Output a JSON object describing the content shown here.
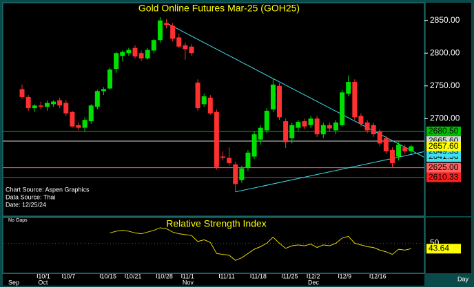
{
  "chart_data": {
    "type": "candlestick",
    "title": "Gold Online Futures Mar-25 (GOH25)",
    "notes": [
      "Chart Source: Aspen Graphics",
      "Data Source: Thai",
      "Date: 12/25/24"
    ],
    "gaps_label": "No Gaps",
    "x_axis_label": "Day",
    "categories": [
      null,
      null,
      null,
      "10/1",
      null,
      null,
      null,
      "10/7",
      null,
      null,
      null,
      null,
      null,
      "10/15",
      null,
      null,
      null,
      "10/21",
      null,
      null,
      null,
      null,
      "10/28",
      null,
      null,
      null,
      "11/1",
      null,
      null,
      null,
      null,
      null,
      "11/11",
      null,
      null,
      null,
      null,
      "11/18",
      null,
      null,
      null,
      null,
      "11/25",
      null,
      null,
      null,
      "12/2",
      null,
      null,
      null,
      null,
      "12/9",
      null,
      null,
      null,
      null,
      "12/16",
      null,
      null,
      null,
      null,
      null,
      null
    ],
    "months": [
      "Sep",
      null,
      null,
      "Oct",
      null,
      null,
      null,
      null,
      null,
      null,
      null,
      null,
      null,
      null,
      null,
      null,
      null,
      null,
      null,
      null,
      null,
      null,
      null,
      null,
      null,
      null,
      "Nov",
      null,
      null,
      null,
      null,
      null,
      null,
      null,
      null,
      null,
      null,
      null,
      null,
      null,
      null,
      null,
      null,
      null,
      null,
      null,
      "Dec",
      null,
      null,
      null,
      null,
      null,
      null,
      null,
      null,
      null,
      null,
      null,
      null,
      null,
      null,
      null,
      null
    ],
    "open": [
      2745,
      2733,
      2716,
      2720,
      2718,
      2722,
      2728,
      2724,
      2710,
      2690,
      2686,
      2696,
      2718,
      2742,
      2746,
      2776,
      2796,
      2800,
      2808,
      2800,
      2792,
      2804,
      2820,
      2846,
      2842,
      2824,
      2812,
      2810,
      2755,
      2722,
      2732,
      2710,
      2642,
      2640,
      2630,
      2606,
      2625,
      2642,
      2668,
      2682,
      2714,
      2750,
      2696,
      2670,
      2686,
      2696,
      2690,
      2700,
      2676,
      2690,
      2682,
      2690,
      2738,
      2756,
      2704,
      2694,
      2690,
      2680,
      2670,
      2652,
      2642,
      2656,
      2650
    ],
    "high": [
      2752,
      2736,
      2722,
      2726,
      2728,
      2728,
      2732,
      2728,
      2712,
      2694,
      2702,
      2722,
      2744,
      2748,
      2778,
      2802,
      2804,
      2808,
      2812,
      2804,
      2808,
      2822,
      2855,
      2852,
      2846,
      2830,
      2816,
      2814,
      2760,
      2738,
      2736,
      2714,
      2650,
      2656,
      2634,
      2628,
      2652,
      2680,
      2690,
      2716,
      2762,
      2754,
      2700,
      2694,
      2698,
      2700,
      2704,
      2704,
      2694,
      2694,
      2698,
      2744,
      2766,
      2760,
      2708,
      2698,
      2694,
      2684,
      2674,
      2656,
      2664,
      2660,
      2660
    ],
    "low": [
      2730,
      2712,
      2710,
      2714,
      2712,
      2718,
      2716,
      2704,
      2686,
      2682,
      2680,
      2692,
      2714,
      2736,
      2744,
      2770,
      2788,
      2796,
      2792,
      2788,
      2790,
      2800,
      2816,
      2838,
      2818,
      2808,
      2790,
      2796,
      2712,
      2718,
      2706,
      2622,
      2636,
      2628,
      2588,
      2602,
      2620,
      2638,
      2660,
      2678,
      2710,
      2698,
      2655,
      2662,
      2680,
      2684,
      2686,
      2672,
      2670,
      2680,
      2676,
      2688,
      2734,
      2698,
      2688,
      2678,
      2672,
      2658,
      2646,
      2625,
      2636,
      2646,
      2646
    ],
    "close": [
      2733,
      2716,
      2720,
      2718,
      2724,
      2726,
      2720,
      2708,
      2688,
      2686,
      2698,
      2720,
      2742,
      2745,
      2775,
      2800,
      2802,
      2805,
      2795,
      2792,
      2805,
      2820,
      2850,
      2843,
      2822,
      2810,
      2806,
      2800,
      2716,
      2734,
      2708,
      2626,
      2640,
      2632,
      2600,
      2624,
      2648,
      2676,
      2686,
      2712,
      2752,
      2702,
      2664,
      2690,
      2695,
      2688,
      2700,
      2676,
      2690,
      2685,
      2694,
      2740,
      2756,
      2702,
      2692,
      2682,
      2676,
      2662,
      2650,
      2632,
      2660,
      2650,
      2657.6
    ],
    "close_label": "2657.60",
    "up_color": "#00e000",
    "down_color": "#ff3030",
    "ylim": [
      2551,
      2877
    ],
    "yticks": [
      {
        "value": 2850,
        "label": "2850.00"
      },
      {
        "value": 2800,
        "label": "2800.00"
      },
      {
        "value": 2750,
        "label": "2750.00"
      },
      {
        "value": 2700,
        "label": "2700.00"
      }
    ],
    "levels": [
      {
        "value": 2680.5,
        "label": "2680.50",
        "color": "#00c000"
      },
      {
        "value": 2665.6,
        "label": "2665.60",
        "color": "#d8d8d8"
      },
      {
        "value": 2625,
        "label": "2625.00",
        "color": "#ff6060"
      },
      {
        "value": 2610.33,
        "label": "2610.33",
        "color": "#ff2020"
      }
    ],
    "trendlines": [
      {
        "x": [
          23,
          64
        ],
        "y": [
          2846,
          2641.36
        ],
        "label": "2641.36",
        "color": "#40e0f0"
      },
      {
        "x": [
          34,
          64
        ],
        "y": [
          2588,
          2649.33
        ],
        "label": "2649.33",
        "color": "#40e0f0"
      }
    ],
    "rsi": {
      "title": "Relative Strength Index",
      "color": "#e8d800",
      "ylim": [
        15,
        80
      ],
      "yticks": [
        50
      ],
      "values": [
        null,
        null,
        null,
        null,
        null,
        null,
        null,
        null,
        null,
        null,
        null,
        null,
        null,
        null,
        62,
        64,
        65,
        64,
        62,
        61,
        63,
        65,
        68,
        67,
        63,
        61,
        60,
        59,
        52,
        54,
        51,
        38,
        37,
        36,
        30,
        33,
        38,
        43,
        46,
        50,
        57,
        50,
        44,
        47,
        48,
        47,
        49,
        45,
        48,
        47,
        50,
        56,
        58,
        50,
        48,
        46,
        45,
        42,
        40,
        37,
        43,
        42,
        43.64
      ]
    }
  }
}
